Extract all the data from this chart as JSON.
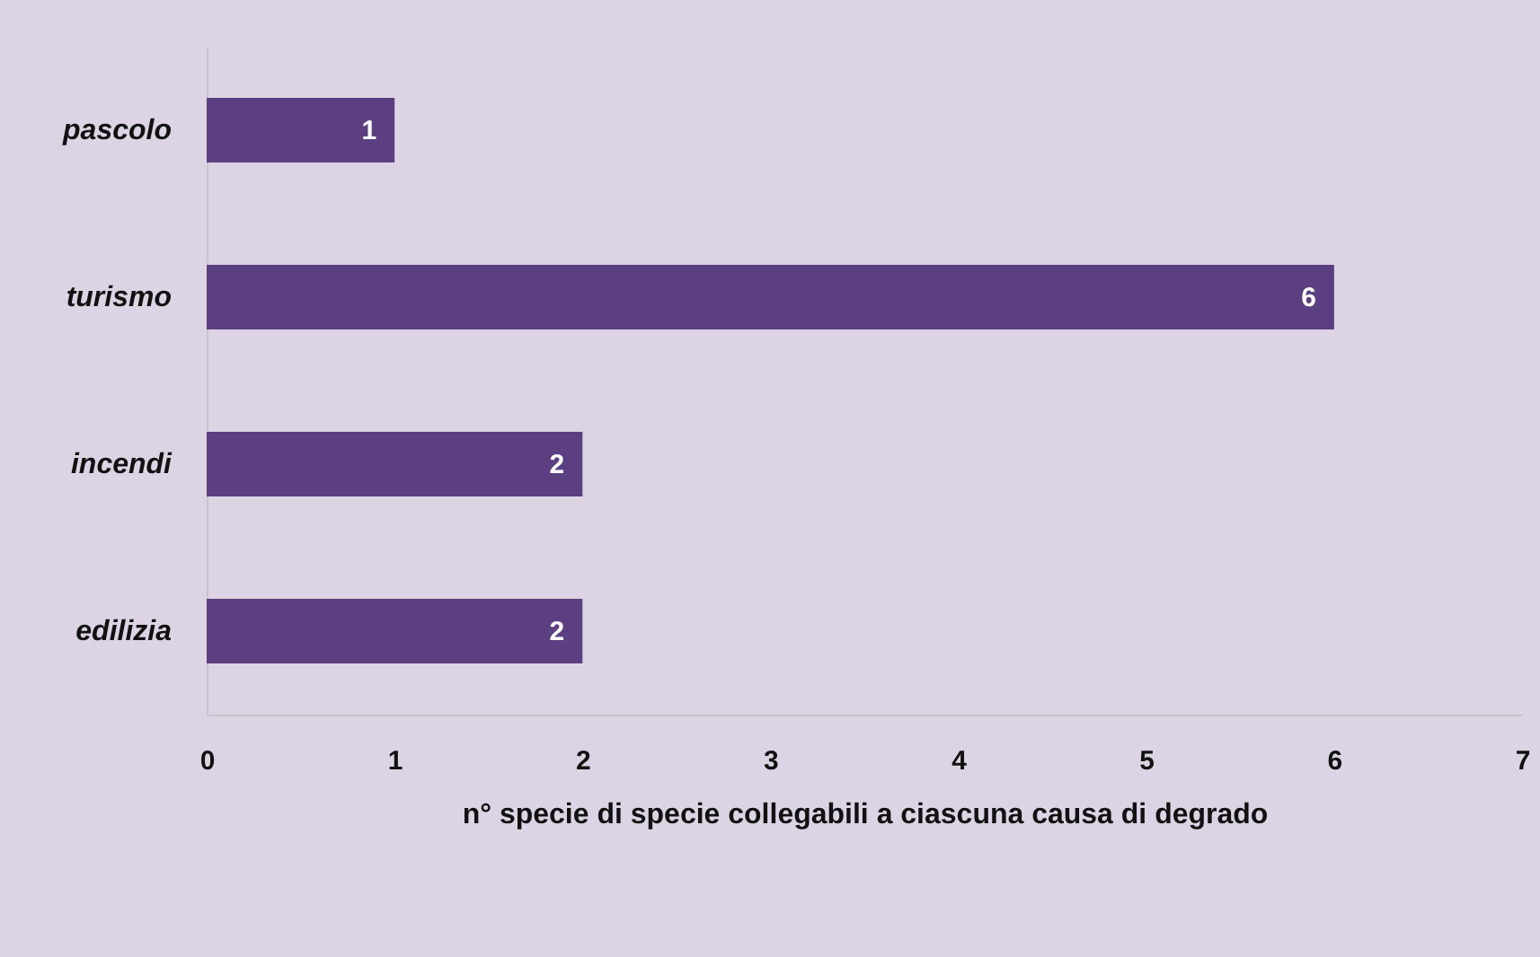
{
  "chart_data": {
    "type": "bar",
    "orientation": "horizontal",
    "categories": [
      "pascolo",
      "turismo",
      "incendi",
      "edilizia"
    ],
    "values": [
      1,
      6,
      2,
      2
    ],
    "color": "#5b3f80",
    "xlabel": "n° specie di specie collegabili a ciascuna causa di degrado",
    "xlim": [
      0,
      7
    ],
    "xticks": [
      0,
      1,
      2,
      3,
      4,
      5,
      6,
      7
    ],
    "data_labels": true
  }
}
